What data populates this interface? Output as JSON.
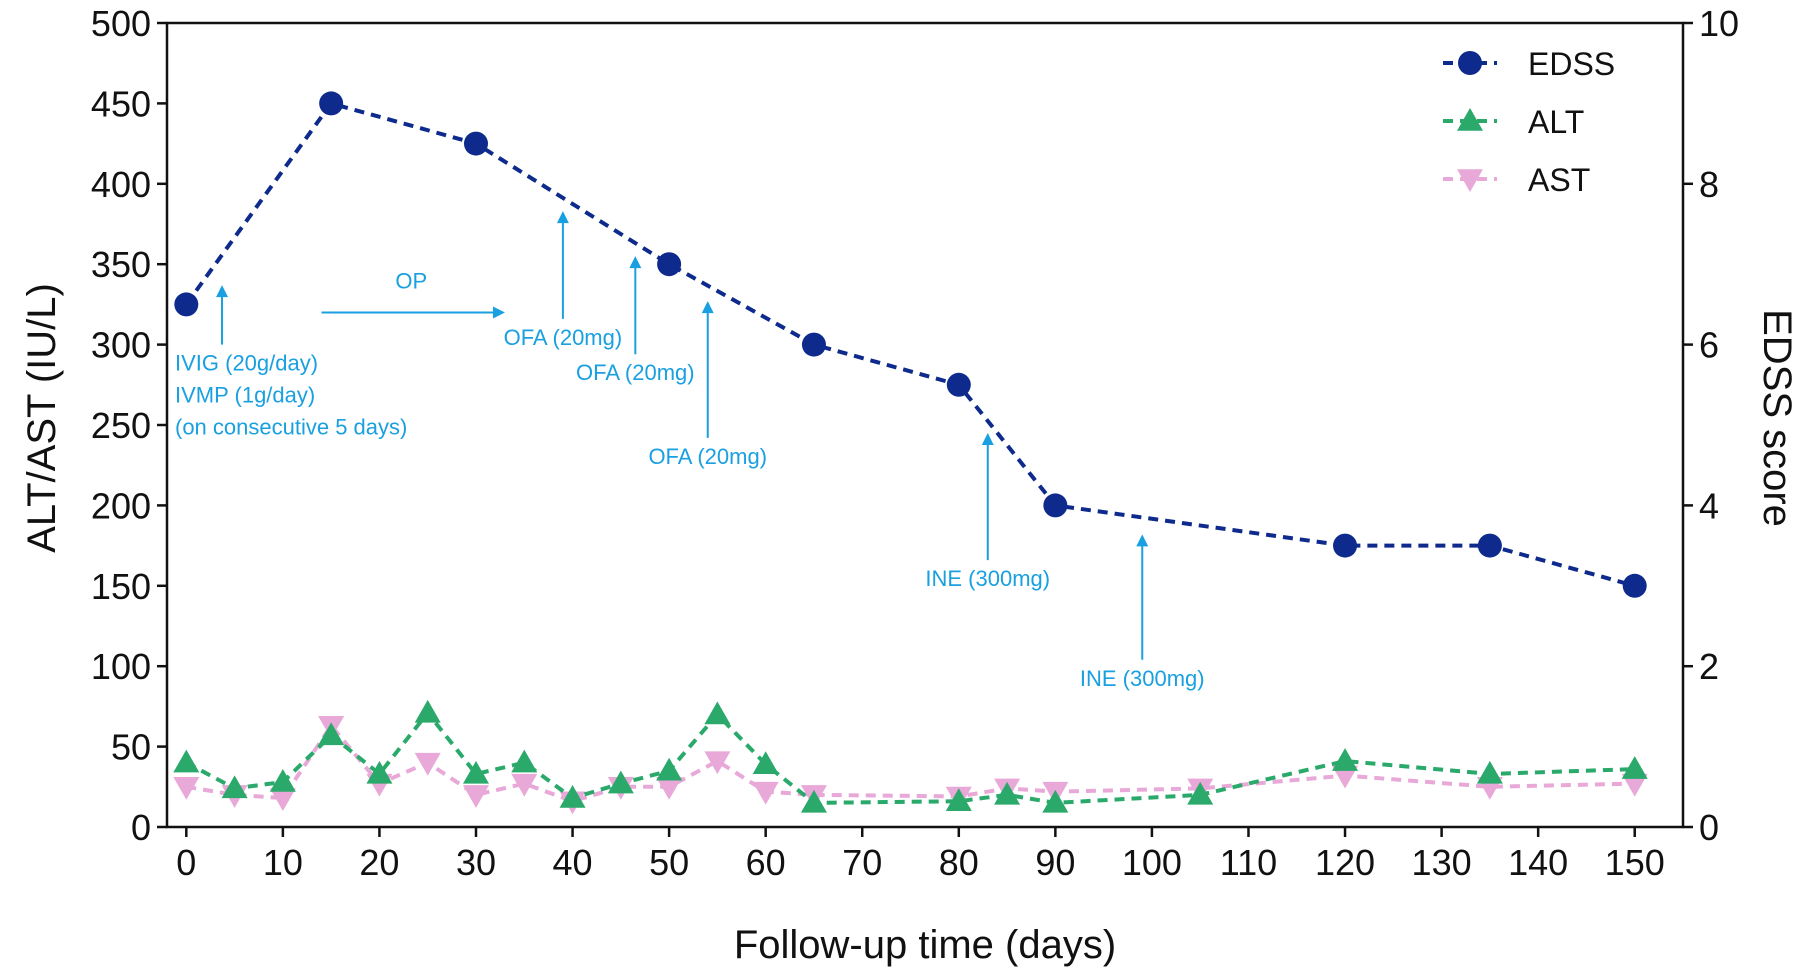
{
  "chart_data": {
    "type": "line",
    "xlabel": "Follow-up time (days)",
    "ylabel_left": "ALT/AST (IU/L)",
    "ylabel_right": "EDSS score",
    "xlim": [
      -2,
      155
    ],
    "ylim_left": [
      0,
      500
    ],
    "ylim_right": [
      0,
      10
    ],
    "x_ticks": [
      0,
      10,
      20,
      30,
      40,
      50,
      60,
      70,
      80,
      90,
      100,
      110,
      120,
      130,
      140,
      150
    ],
    "y_left_ticks": [
      0,
      50,
      100,
      150,
      200,
      250,
      300,
      350,
      400,
      450,
      500
    ],
    "y_right_ticks": [
      0,
      2,
      4,
      6,
      8,
      10
    ],
    "legend_position": "top-right",
    "series": [
      {
        "name": "EDSS",
        "axis": "right",
        "marker": "circle",
        "color": "#0d2a8c",
        "x": [
          0,
          15,
          30,
          50,
          65,
          80,
          90,
          120,
          135,
          150
        ],
        "values": [
          6.5,
          9.0,
          8.5,
          7.0,
          6.0,
          5.5,
          4.0,
          3.5,
          3.5,
          3.0
        ]
      },
      {
        "name": "ALT",
        "axis": "left",
        "marker": "triangle-up",
        "color": "#2aa96b",
        "x": [
          0,
          5,
          10,
          15,
          20,
          25,
          30,
          35,
          40,
          45,
          50,
          55,
          60,
          65,
          80,
          85,
          90,
          105,
          120,
          135,
          150
        ],
        "values": [
          40,
          24,
          28,
          57,
          33,
          71,
          33,
          40,
          18,
          27,
          35,
          70,
          39,
          15,
          16,
          20,
          15,
          20,
          41,
          33,
          36
        ]
      },
      {
        "name": "AST",
        "axis": "left",
        "marker": "triangle-down",
        "color": "#e8a8d8",
        "x": [
          0,
          5,
          10,
          15,
          20,
          25,
          30,
          35,
          40,
          45,
          50,
          55,
          60,
          65,
          80,
          85,
          90,
          105,
          120,
          135,
          150
        ],
        "values": [
          25,
          20,
          18,
          63,
          27,
          40,
          20,
          27,
          16,
          25,
          25,
          41,
          22,
          20,
          19,
          24,
          22,
          24,
          32,
          25,
          27
        ]
      }
    ],
    "annotations": [
      {
        "id": "ivig",
        "lines": [
          "IVIG (20g/day)",
          "IVMP (1g/day)",
          "(on consecutive 5 days)"
        ],
        "arrow_x": 3.7,
        "arrow_from": 300,
        "arrow_to": 337
      },
      {
        "id": "op",
        "lines": [
          "OP"
        ],
        "arrow_direction": "right",
        "arrow_from_x": 14,
        "arrow_to_x": 33,
        "arrow_y": 320
      },
      {
        "id": "ofa1",
        "lines": [
          "OFA (20mg)"
        ],
        "arrow_x": 39,
        "arrow_from": 316,
        "arrow_to": 383
      },
      {
        "id": "ofa2",
        "lines": [
          "OFA (20mg)"
        ],
        "arrow_x": 46.5,
        "arrow_from": 294,
        "arrow_to": 355
      },
      {
        "id": "ofa3",
        "lines": [
          "OFA (20mg)"
        ],
        "arrow_x": 54,
        "arrow_from": 242,
        "arrow_to": 327
      },
      {
        "id": "ine1",
        "lines": [
          "INE (300mg)"
        ],
        "arrow_x": 83,
        "arrow_from": 166,
        "arrow_to": 245
      },
      {
        "id": "ine2",
        "lines": [
          "INE (300mg)"
        ],
        "arrow_x": 99,
        "arrow_from": 104,
        "arrow_to": 182
      }
    ]
  }
}
